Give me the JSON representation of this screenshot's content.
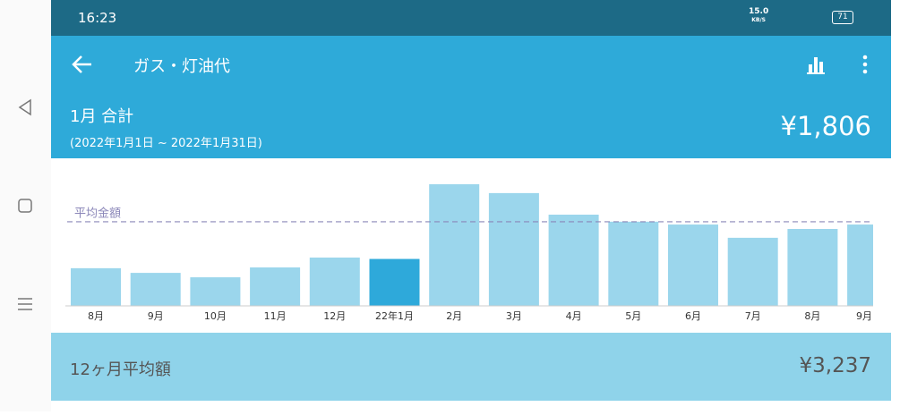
{
  "status_bar": {
    "time": "16:23",
    "speed": "15.0",
    "speed_unit": "KB/S",
    "battery": "71"
  },
  "header": {
    "title": "ガス・灯油代"
  },
  "summary": {
    "label": "1月 合計",
    "period": "(2022年1月1日 ~ 2022年1月31日)",
    "total": "¥1,806"
  },
  "chart_data": {
    "type": "bar",
    "categories": [
      "8月",
      "9月",
      "10月",
      "11月",
      "12月",
      "22年1月",
      "2月",
      "3月",
      "4月",
      "5月",
      "6月",
      "7月",
      "8月",
      "9月"
    ],
    "values": [
      1450,
      1270,
      1100,
      1480,
      1860,
      1806,
      4680,
      4340,
      3510,
      3240,
      3130,
      2620,
      2960,
      3130
    ],
    "color": "#9bd6ec",
    "selected_index": 5,
    "selected_color": "#2ea9da",
    "average": 3237,
    "average_label": "平均金額",
    "average_color": "#8a86b8"
  },
  "footer": {
    "label": "12ヶ月平均額",
    "amount": "¥3,237"
  }
}
